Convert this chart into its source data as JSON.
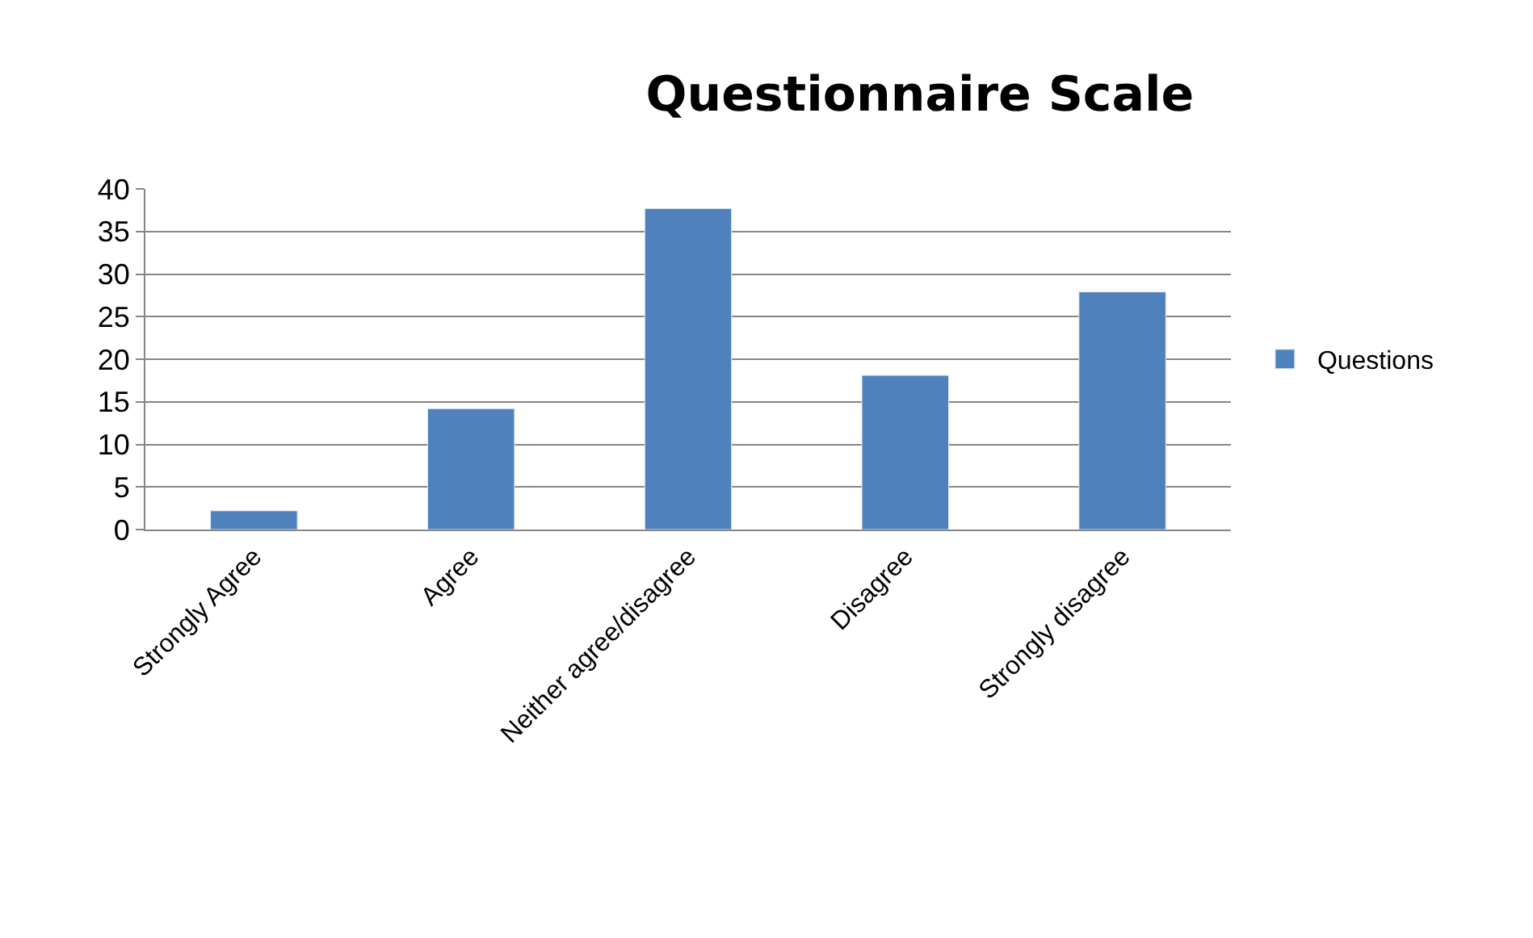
{
  "chart_data": {
    "type": "bar",
    "title": "Questionnaire Scale",
    "categories": [
      "Strongly Agree",
      "Agree",
      "Neither agree/disagree",
      "Disagree",
      "Strongly disagree"
    ],
    "series": [
      {
        "name": "Questions",
        "color": "#4f81bd",
        "values": [
          2.2,
          14.2,
          37.7,
          18.1,
          27.9
        ]
      }
    ],
    "ylim": [
      0,
      40
    ],
    "yticks": [
      0,
      5,
      10,
      15,
      20,
      25,
      30,
      35,
      40
    ],
    "grid": "y",
    "legend": "right"
  }
}
